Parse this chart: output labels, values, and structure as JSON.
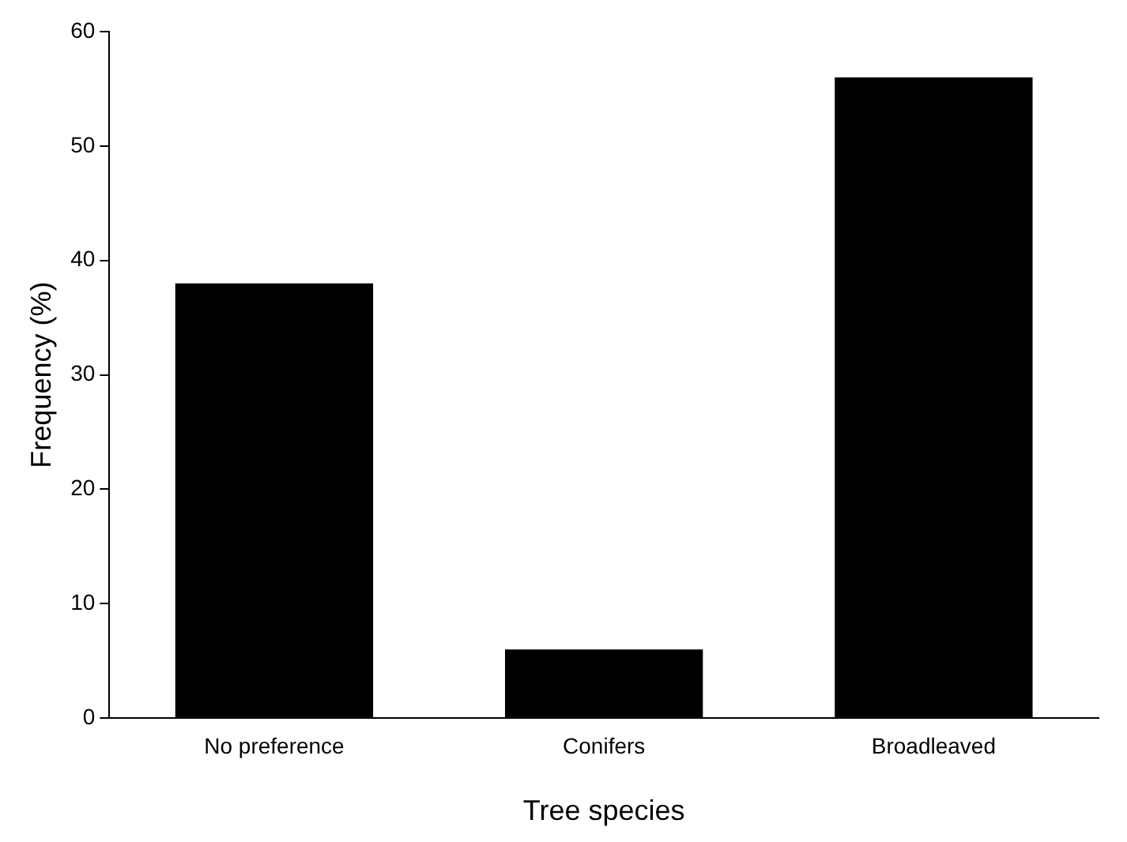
{
  "chart_data": {
    "type": "bar",
    "xlabel": "Tree species",
    "ylabel": "Frequency (%)",
    "categories": [
      "No preference",
      "Conifers",
      "Broadleaved"
    ],
    "values": [
      38,
      6,
      56
    ],
    "color": "#000000",
    "ylim": [
      0,
      60
    ],
    "yticks": [
      0,
      10,
      20,
      30,
      40,
      50,
      60
    ],
    "grid": false,
    "legend": false
  }
}
